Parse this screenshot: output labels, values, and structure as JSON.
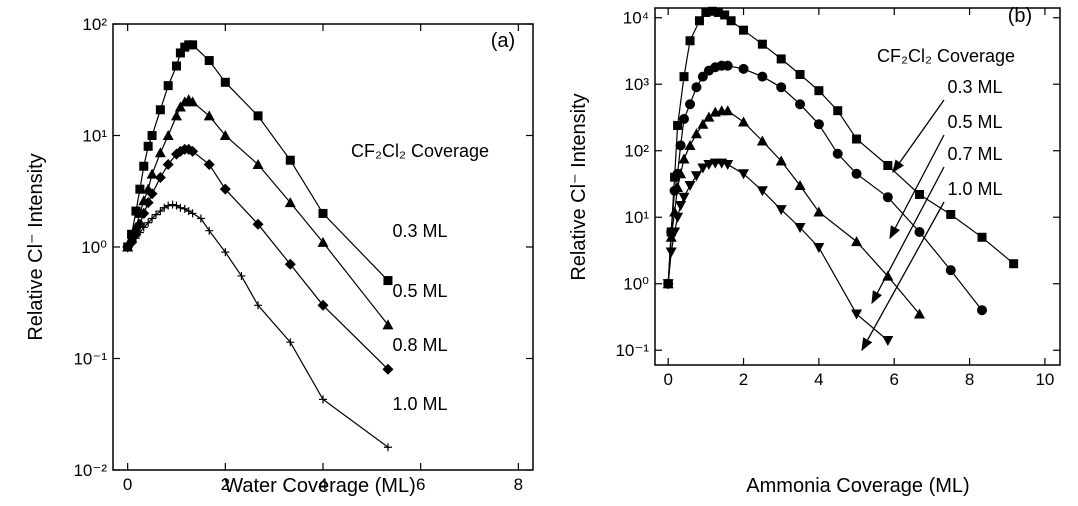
{
  "chart_data": [
    {
      "type": "line",
      "x_label": "Water Coverage (ML)",
      "y_label": "Relative Cl⁻ Intensity",
      "panel_label": "(a)",
      "legend_title": "CF₂Cl₂ Coverage",
      "log_y": true,
      "grid": false,
      "xlim": [
        -0.3,
        8.3
      ],
      "xticks": [
        0,
        2,
        4,
        6,
        8
      ],
      "ylim": [
        0.01,
        100
      ],
      "yticks": [
        {
          "value": 0.01,
          "label": "10⁻²"
        },
        {
          "value": 0.1,
          "label": "10⁻¹"
        },
        {
          "value": 1,
          "label": "10⁰"
        },
        {
          "value": 10,
          "label": "10¹"
        },
        {
          "value": 100,
          "label": "10²"
        }
      ],
      "series": [
        {
          "name": "0.3 ML",
          "color": "#000000",
          "marker": "square",
          "x": [
            0,
            0.08,
            0.17,
            0.25,
            0.33,
            0.42,
            0.5,
            0.67,
            0.83,
            1.0,
            1.08,
            1.17,
            1.25,
            1.33,
            1.67,
            2.0,
            2.67,
            3.33,
            4.0,
            5.33
          ],
          "values": [
            1.0,
            1.3,
            2.1,
            3.3,
            5.3,
            8,
            10,
            17,
            28,
            42,
            55,
            62,
            65,
            65,
            47,
            30,
            15,
            6,
            2,
            0.5
          ]
        },
        {
          "name": "0.5 ML",
          "color": "#000000",
          "marker": "triangle",
          "x": [
            0,
            0.08,
            0.17,
            0.25,
            0.33,
            0.42,
            0.5,
            0.67,
            0.83,
            1.0,
            1.08,
            1.17,
            1.25,
            1.33,
            1.67,
            2.0,
            2.67,
            3.33,
            4.0,
            5.33
          ],
          "values": [
            1.0,
            1.2,
            1.5,
            2.0,
            2.6,
            3.3,
            4.5,
            7,
            10,
            15,
            18,
            20,
            21,
            20,
            15,
            10,
            5.5,
            2.5,
            1.1,
            0.2
          ]
        },
        {
          "name": "0.8 ML",
          "color": "#000000",
          "marker": "diamond",
          "x": [
            0,
            0.08,
            0.17,
            0.25,
            0.33,
            0.42,
            0.5,
            0.67,
            0.83,
            1.0,
            1.08,
            1.17,
            1.25,
            1.33,
            1.67,
            2.0,
            2.67,
            3.33,
            4.0,
            5.33
          ],
          "values": [
            1.0,
            1.1,
            1.3,
            1.6,
            2.0,
            2.5,
            3.0,
            4.2,
            5.5,
            6.8,
            7.2,
            7.5,
            7.5,
            7.2,
            5.5,
            3.3,
            1.6,
            0.7,
            0.3,
            0.08
          ]
        },
        {
          "name": "1.0 ML",
          "color": "#000000",
          "marker": "plus",
          "x": [
            0,
            0.08,
            0.17,
            0.25,
            0.33,
            0.42,
            0.5,
            0.58,
            0.67,
            0.75,
            0.83,
            0.92,
            1.0,
            1.08,
            1.17,
            1.25,
            1.33,
            1.5,
            1.67,
            2.0,
            2.33,
            2.67,
            3.33,
            4.0,
            5.33
          ],
          "values": [
            1.0,
            1.1,
            1.2,
            1.35,
            1.5,
            1.65,
            1.8,
            1.95,
            2.1,
            2.25,
            2.35,
            2.4,
            2.35,
            2.25,
            2.2,
            2.1,
            2.0,
            1.8,
            1.4,
            0.9,
            0.55,
            0.3,
            0.14,
            0.043,
            0.016
          ]
        }
      ]
    },
    {
      "type": "line",
      "x_label": "Ammonia Coverage (ML)",
      "y_label": "Relative Cl⁻ Intensity",
      "panel_label": "(b)",
      "legend_title": "CF₂Cl₂ Coverage",
      "log_y": true,
      "grid": false,
      "xlim": [
        -0.35,
        10.4
      ],
      "xticks": [
        0,
        2,
        4,
        6,
        8,
        10
      ],
      "ylim": [
        0.06,
        14000
      ],
      "yticks": [
        {
          "value": 0.1,
          "label": "10⁻¹"
        },
        {
          "value": 1,
          "label": "10⁰"
        },
        {
          "value": 10,
          "label": "10¹"
        },
        {
          "value": 100,
          "label": "10²"
        },
        {
          "value": 1000,
          "label": "10³"
        },
        {
          "value": 10000,
          "label": "10⁴"
        }
      ],
      "series": [
        {
          "name": "0.3 ML",
          "color": "#000000",
          "marker": "square",
          "x": [
            0,
            0.08,
            0.17,
            0.25,
            0.42,
            0.58,
            0.83,
            1.0,
            1.17,
            1.33,
            1.5,
            1.67,
            2.0,
            2.5,
            3.0,
            3.5,
            4.0,
            4.5,
            5.0,
            5.83,
            6.67,
            7.5,
            8.33,
            9.17
          ],
          "values": [
            1,
            6,
            40,
            240,
            1300,
            4500,
            9000,
            12000,
            12500,
            12000,
            11000,
            9000,
            6500,
            4000,
            2400,
            1400,
            800,
            400,
            150,
            60,
            22,
            11,
            5,
            2
          ]
        },
        {
          "name": "0.5 ML",
          "color": "#000000",
          "marker": "circle",
          "x": [
            0,
            0.08,
            0.17,
            0.25,
            0.33,
            0.42,
            0.58,
            0.75,
            0.92,
            1.08,
            1.25,
            1.42,
            1.58,
            2.0,
            2.5,
            3.0,
            3.5,
            4.0,
            4.5,
            5.0,
            5.83,
            6.67,
            7.5,
            8.33
          ],
          "values": [
            1,
            6,
            25,
            45,
            120,
            300,
            500,
            900,
            1300,
            1600,
            1800,
            1900,
            1900,
            1700,
            1300,
            900,
            500,
            250,
            90,
            45,
            20,
            6,
            1.6,
            0.4
          ]
        },
        {
          "name": "0.7 ML",
          "color": "#000000",
          "marker": "triangle",
          "x": [
            0,
            0.08,
            0.17,
            0.25,
            0.33,
            0.42,
            0.58,
            0.75,
            0.92,
            1.08,
            1.25,
            1.42,
            1.58,
            2.0,
            2.5,
            3.0,
            3.5,
            4.0,
            5.0,
            5.83,
            6.67
          ],
          "values": [
            1,
            5,
            12,
            28,
            45,
            75,
            120,
            180,
            250,
            320,
            380,
            400,
            400,
            270,
            140,
            70,
            30,
            12,
            4.3,
            1.3,
            0.35
          ]
        },
        {
          "name": "1.0 ML",
          "color": "#000000",
          "marker": "triangle-down",
          "x": [
            0,
            0.08,
            0.17,
            0.25,
            0.33,
            0.42,
            0.58,
            0.75,
            0.92,
            1.08,
            1.25,
            1.42,
            1.58,
            2.0,
            2.5,
            3.0,
            3.5,
            4.0,
            5.0,
            5.83
          ],
          "values": [
            1,
            3,
            6,
            10,
            15,
            20,
            30,
            42,
            55,
            62,
            65,
            65,
            62,
            45,
            25,
            13,
            7,
            3.5,
            0.35,
            0.14
          ]
        }
      ]
    }
  ]
}
